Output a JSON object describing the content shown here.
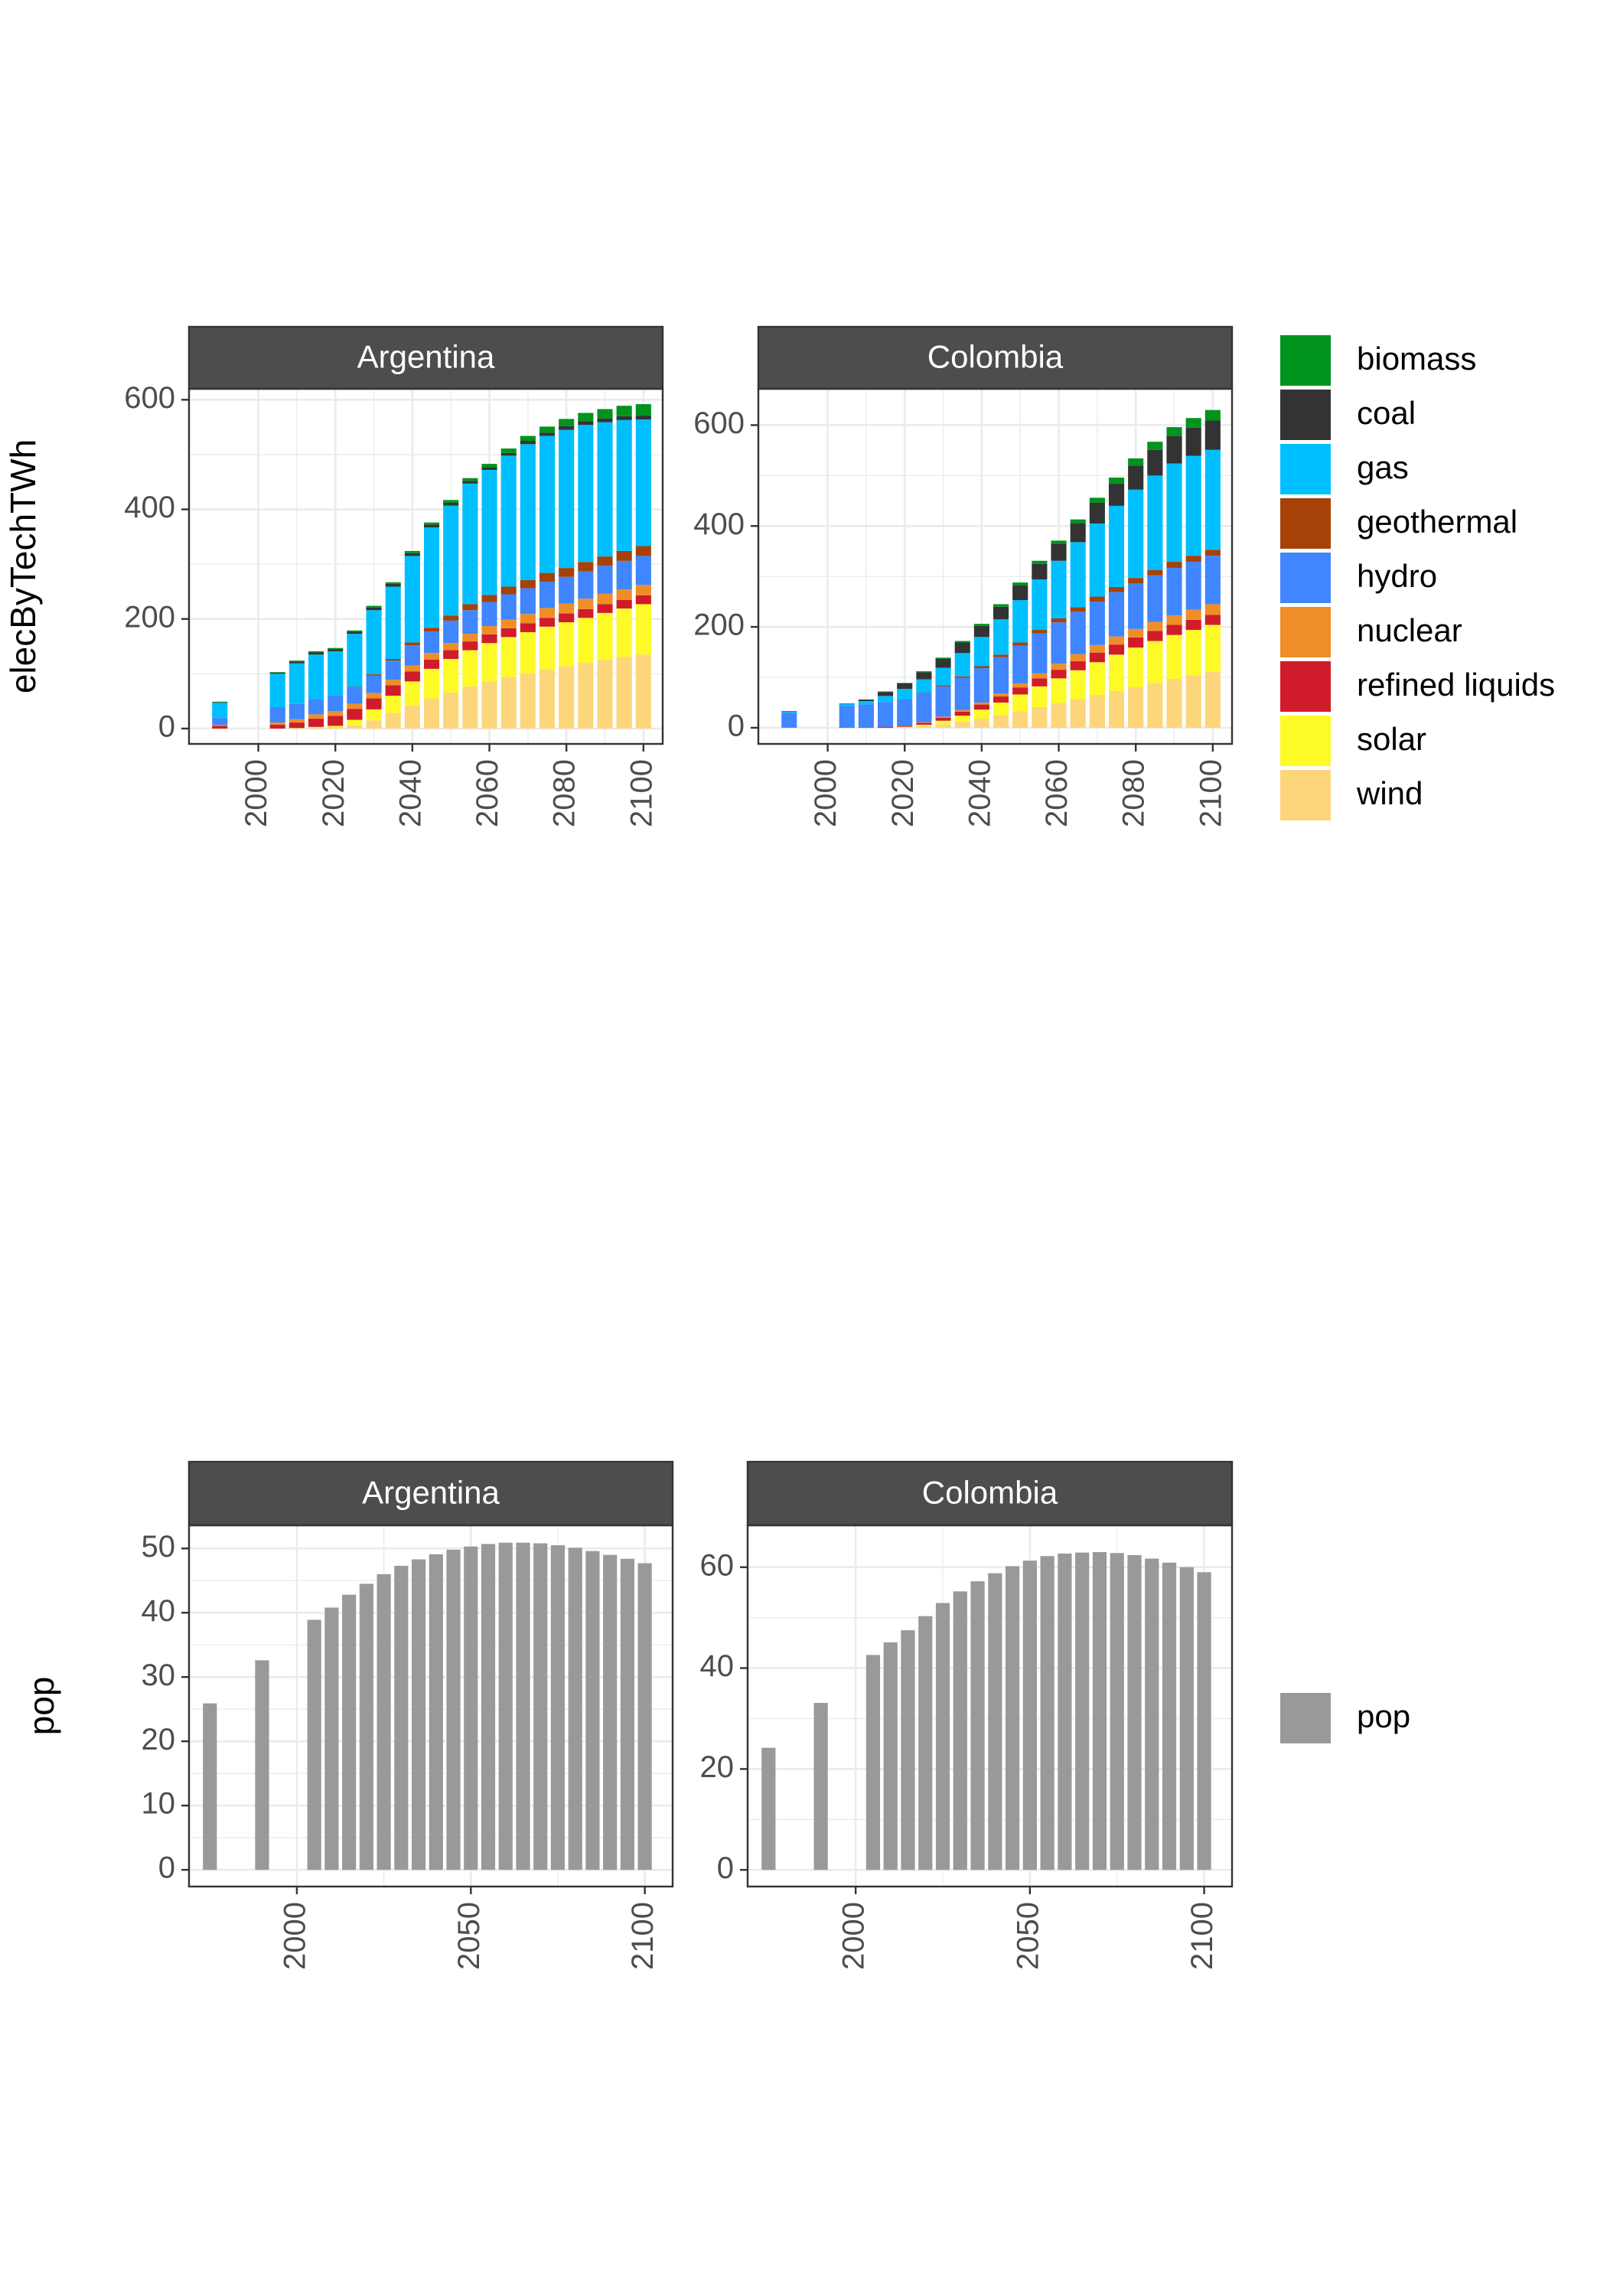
{
  "colors": {
    "biomass": "#00931d",
    "coal": "#333333",
    "gas": "#00bfff",
    "geothermal": "#a64208",
    "hydro": "#3f86ff",
    "nuclear": "#ef8e27",
    "refined liquids": "#d01c2a",
    "solar": "#fdfa28",
    "wind": "#fdd67b",
    "pop": "#999999",
    "strip": "#4d4d4d",
    "grid": "#ebebeb"
  },
  "chart_data": [
    {
      "type": "bar",
      "stacked": true,
      "ylabel": "elecByTechTWh",
      "x_ticks": [
        2000,
        2020,
        2040,
        2060,
        2080,
        2100
      ],
      "x_range": [
        1982,
        2105
      ],
      "grid": true,
      "legend_position": "right",
      "legend": [
        "biomass",
        "coal",
        "gas",
        "geothermal",
        "hydro",
        "nuclear",
        "refined liquids",
        "solar",
        "wind"
      ],
      "stack_order": [
        "wind",
        "solar",
        "refined liquids",
        "nuclear",
        "hydro",
        "geothermal",
        "gas",
        "coal",
        "biomass"
      ],
      "panels": [
        {
          "title": "Argentina",
          "y_ticks": [
            0,
            200,
            400,
            600
          ],
          "y_range": [
            -28,
            620
          ],
          "x": [
            1990,
            2005,
            2010,
            2015,
            2020,
            2025,
            2030,
            2035,
            2040,
            2045,
            2050,
            2055,
            2060,
            2065,
            2070,
            2075,
            2080,
            2085,
            2090,
            2095,
            2100
          ],
          "series": [
            {
              "name": "wind",
              "values": [
                0,
                0,
                0,
                1,
                2,
                6,
                15,
                28,
                42,
                55,
                66,
                77,
                86,
                94,
                101,
                108,
                114,
                120,
                126,
                131,
                135
              ]
            },
            {
              "name": "solar",
              "values": [
                0,
                0,
                1,
                2,
                3,
                10,
                20,
                32,
                44,
                54,
                61,
                66,
                70,
                73,
                75,
                78,
                80,
                82,
                85,
                88,
                92
              ]
            },
            {
              "name": "refined liquids",
              "values": [
                5,
                7,
                10,
                15,
                18,
                20,
                20,
                19,
                18,
                17,
                16,
                16,
                16,
                16,
                16,
                16,
                16,
                16,
                16,
                16,
                16
              ]
            },
            {
              "name": "nuclear",
              "values": [
                2,
                4,
                6,
                8,
                9,
                9,
                10,
                10,
                11,
                12,
                13,
                14,
                15,
                16,
                17,
                18,
                18,
                19,
                19,
                19,
                19
              ]
            },
            {
              "name": "hydro",
              "values": [
                12,
                28,
                28,
                28,
                29,
                30,
                32,
                35,
                37,
                39,
                41,
                43,
                44,
                46,
                47,
                48,
                49,
                50,
                51,
                52,
                53
              ]
            },
            {
              "name": "geothermal",
              "values": [
                0,
                0,
                0,
                0,
                0,
                1,
                2,
                3,
                5,
                7,
                9,
                11,
                13,
                14,
                15,
                16,
                16,
                17,
                17,
                18,
                18
              ]
            },
            {
              "name": "gas",
              "values": [
                28,
                61,
                74,
                81,
                80,
                97,
                117,
                132,
                158,
                183,
                201,
                220,
                228,
                239,
                248,
                250,
                252,
                250,
                245,
                239,
                231
              ]
            },
            {
              "name": "coal",
              "values": [
                1,
                2,
                3,
                4,
                4,
                4,
                5,
                5,
                5,
                5,
                5,
                5,
                5,
                5,
                6,
                6,
                7,
                7,
                7,
                7,
                7
              ]
            },
            {
              "name": "biomass",
              "values": [
                1,
                1,
                2,
                2,
                2,
                2,
                3,
                3,
                4,
                4,
                5,
                5,
                6,
                8,
                9,
                11,
                13,
                15,
                17,
                19,
                21
              ]
            }
          ]
        },
        {
          "title": "Colombia",
          "y_ticks": [
            0,
            200,
            400,
            600
          ],
          "y_range": [
            -32,
            672
          ],
          "x": [
            1990,
            2005,
            2010,
            2015,
            2020,
            2025,
            2030,
            2035,
            2040,
            2045,
            2050,
            2055,
            2060,
            2065,
            2070,
            2075,
            2080,
            2085,
            2090,
            2095,
            2100
          ],
          "series": [
            {
              "name": "wind",
              "values": [
                0,
                0,
                0,
                0,
                1,
                3,
                7,
                12,
                18,
                25,
                33,
                41,
                49,
                57,
                65,
                73,
                81,
                89,
                97,
                104,
                111
              ]
            },
            {
              "name": "solar",
              "values": [
                0,
                0,
                0,
                0,
                1,
                3,
                7,
                12,
                18,
                25,
                33,
                41,
                49,
                57,
                65,
                72,
                78,
                83,
                87,
                90,
                93
              ]
            },
            {
              "name": "refined liquids",
              "values": [
                0,
                1,
                1,
                2,
                2,
                4,
                6,
                8,
                10,
                12,
                14,
                16,
                17,
                18,
                19,
                20,
                20,
                20,
                20,
                20,
                20
              ]
            },
            {
              "name": "nuclear",
              "values": [
                0,
                0,
                0,
                0,
                0,
                1,
                2,
                3,
                4,
                6,
                8,
                10,
                12,
                14,
                15,
                16,
                17,
                18,
                19,
                20,
                21
              ]
            },
            {
              "name": "hydro",
              "values": [
                30,
                42,
                45,
                49,
                53,
                57,
                60,
                64,
                68,
                72,
                75,
                79,
                82,
                84,
                86,
                88,
                90,
                92,
                94,
                95,
                96
              ]
            },
            {
              "name": "geothermal",
              "values": [
                0,
                0,
                0,
                0,
                0,
                1,
                2,
                3,
                4,
                5,
                6,
                7,
                8,
                9,
                10,
                10,
                11,
                11,
                12,
                12,
                12
              ]
            },
            {
              "name": "gas",
              "values": [
                2,
                4,
                7,
                12,
                20,
                27,
                35,
                46,
                58,
                70,
                84,
                100,
                114,
                129,
                145,
                161,
                175,
                187,
                195,
                198,
                198
              ]
            },
            {
              "name": "coal",
              "values": [
                1,
                1,
                3,
                8,
                11,
                14,
                18,
                21,
                22,
                25,
                29,
                31,
                34,
                37,
                41,
                44,
                48,
                51,
                54,
                56,
                58
              ]
            },
            {
              "name": "biomass",
              "values": [
                0,
                0,
                0,
                1,
                1,
                2,
                2,
                3,
                4,
                5,
                6,
                6,
                6,
                8,
                10,
                12,
                14,
                16,
                18,
                19,
                21
              ]
            }
          ]
        }
      ]
    },
    {
      "type": "bar",
      "stacked": false,
      "ylabel": "pop",
      "x_ticks": [
        2000,
        2050,
        2100
      ],
      "x_range": [
        1969,
        2108
      ],
      "grid": true,
      "legend_position": "right",
      "legend": [
        "pop"
      ],
      "panels": [
        {
          "title": "Argentina",
          "y_ticks": [
            0,
            10,
            20,
            30,
            40,
            50
          ],
          "y_range": [
            -2.6,
            53.6
          ],
          "x": [
            1975,
            1990,
            2005,
            2010,
            2015,
            2020,
            2025,
            2030,
            2035,
            2040,
            2045,
            2050,
            2055,
            2060,
            2065,
            2070,
            2075,
            2080,
            2085,
            2090,
            2095,
            2100
          ],
          "values": [
            25.9,
            32.6,
            38.9,
            40.8,
            42.8,
            44.5,
            46.0,
            47.3,
            48.3,
            49.1,
            49.8,
            50.3,
            50.7,
            50.9,
            50.9,
            50.8,
            50.5,
            50.1,
            49.6,
            49.0,
            48.4,
            47.7
          ]
        },
        {
          "title": "Colombia",
          "y_ticks": [
            0,
            20,
            40,
            60
          ],
          "y_range": [
            -3.3,
            68.3
          ],
          "x": [
            1975,
            1990,
            2005,
            2010,
            2015,
            2020,
            2025,
            2030,
            2035,
            2040,
            2045,
            2050,
            2055,
            2060,
            2065,
            2070,
            2075,
            2080,
            2085,
            2090,
            2095,
            2100
          ],
          "values": [
            24.2,
            33.1,
            42.6,
            45.1,
            47.5,
            50.3,
            52.9,
            55.2,
            57.2,
            58.8,
            60.2,
            61.3,
            62.2,
            62.7,
            62.9,
            63.0,
            62.8,
            62.4,
            61.7,
            60.9,
            60.0,
            59.0
          ]
        }
      ]
    }
  ]
}
